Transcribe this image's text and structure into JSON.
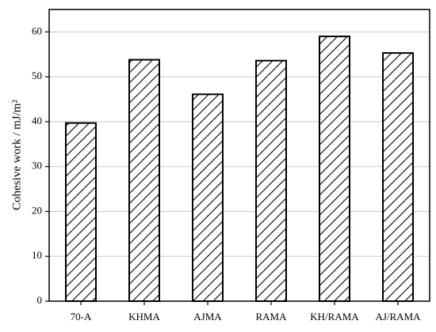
{
  "chart_data": {
    "type": "bar",
    "ylabel": "Cohesive work / mJ/m²",
    "categories": [
      "70-A",
      "KHMA",
      "AJMA",
      "RAMA",
      "KH/RAMA",
      "AJ/RAMA"
    ],
    "values": [
      39.7,
      53.8,
      46.1,
      53.6,
      59.0,
      55.3
    ],
    "color": "#000000",
    "ylim": [
      0,
      65
    ],
    "yticks": [
      0,
      10,
      20,
      30,
      40,
      50,
      60
    ],
    "grid": true
  }
}
